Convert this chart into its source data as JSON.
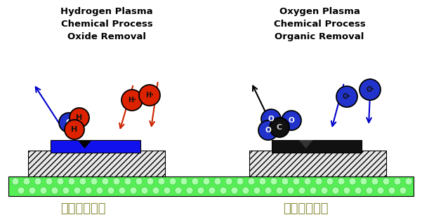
{
  "title_left": "Hydrogen Plasma\nChemical Process\nOxide Removal",
  "title_right": "Oxygen Plasma\nChemical Process\nOrganic Removal",
  "label_left": "化学清洗工艺",
  "label_right": "化学清洗工艺",
  "bg_color": "#ffffff",
  "green_bar_color": "#55ee55",
  "green_dot_color": "#aaffaa",
  "green_dot_edge": "#44bb44",
  "substrate_hatch_color": "#dddddd",
  "blue_block_color": "#1111ee",
  "black_block_color": "#111111",
  "red_atom_color": "#dd2200",
  "blue_atom_color": "#2233cc",
  "black_atom_color": "#111111",
  "title_fontsize": 9.5,
  "label_fontsize": 13,
  "atom_label_color_dark": "#111111",
  "atom_label_color_light": "#ffffff"
}
